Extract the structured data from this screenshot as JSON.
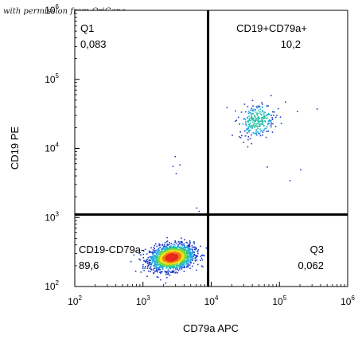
{
  "watermark": "with permission from OriGene",
  "chart_data": {
    "type": "scatter",
    "subtype": "flow-cytometry-density-dot-plot",
    "xlabel": "CD79a APC",
    "ylabel": "CD19 PE",
    "x_scale": "log",
    "y_scale": "log",
    "xlim": [
      100,
      1000000
    ],
    "ylim": [
      100,
      1000000
    ],
    "x_ticks": [
      {
        "base": "10",
        "exp": "2",
        "value": 100
      },
      {
        "base": "10",
        "exp": "3",
        "value": 1000
      },
      {
        "base": "10",
        "exp": "4",
        "value": 10000
      },
      {
        "base": "10",
        "exp": "5",
        "value": 100000
      },
      {
        "base": "10",
        "exp": "6",
        "value": 1000000
      }
    ],
    "y_ticks": [
      {
        "base": "10",
        "exp": "2",
        "value": 100
      },
      {
        "base": "10",
        "exp": "3",
        "value": 1000
      },
      {
        "base": "10",
        "exp": "4",
        "value": 10000
      },
      {
        "base": "10",
        "exp": "5",
        "value": 100000
      },
      {
        "base": "10",
        "exp": "6",
        "value": 1000000
      }
    ],
    "gates": {
      "x": 9000,
      "y": 1100
    },
    "quadrants": [
      {
        "id": "Q1",
        "name": "Q1",
        "value": "0,083",
        "position": "top-left"
      },
      {
        "id": "Q2",
        "name": "CD19+CD79a+",
        "value": "10,2",
        "position": "top-right"
      },
      {
        "id": "Q3",
        "name": "Q3",
        "value": "0,062",
        "position": "bottom-right"
      },
      {
        "id": "Q4",
        "name": "CD19-CD79a-",
        "value": "89,6",
        "position": "bottom-left"
      }
    ],
    "populations": [
      {
        "quadrant": "Q4",
        "center": [
          2600,
          270
        ],
        "spread_decades": [
          0.16,
          0.09
        ],
        "density": "high"
      },
      {
        "quadrant": "Q2",
        "center": [
          46000,
          26000
        ],
        "spread_decades": [
          0.13,
          0.12
        ],
        "density": "low"
      }
    ],
    "outlier_events": [
      [
        2900,
        7800
      ],
      [
        2700,
        5600
      ],
      [
        3000,
        4400
      ],
      [
        3400,
        5900
      ],
      [
        200000,
        5000
      ],
      [
        65000,
        5500
      ],
      [
        140000,
        3500
      ],
      [
        6500,
        1250
      ],
      [
        6000,
        1400
      ],
      [
        120000,
        48000
      ],
      [
        180000,
        35000
      ],
      [
        350000,
        38000
      ]
    ],
    "grid": false,
    "legend": "none"
  }
}
